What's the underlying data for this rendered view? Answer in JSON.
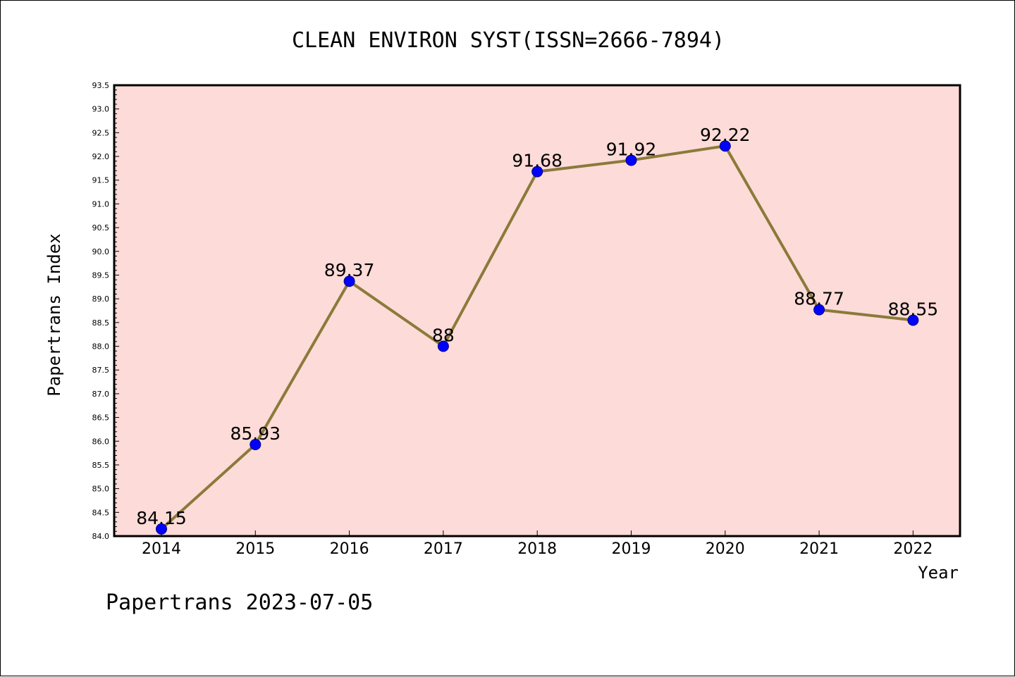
{
  "chart_data": {
    "type": "line",
    "title": "CLEAN ENVIRON SYST(ISSN=2666-7894)",
    "xlabel": "Year",
    "ylabel": "Papertrans Index",
    "categories": [
      "2014",
      "2015",
      "2016",
      "2017",
      "2018",
      "2019",
      "2020",
      "2021",
      "2022"
    ],
    "values": [
      84.15,
      85.93,
      89.37,
      88,
      91.68,
      91.92,
      92.22,
      88.77,
      88.55
    ],
    "data_labels": [
      "84.15",
      "85.93",
      "89.37",
      "88",
      "91.68",
      "91.92",
      "92.22",
      "88.77",
      "88.55"
    ],
    "ylim": [
      84.0,
      93.5
    ],
    "yticks": [
      "84.0",
      "84.5",
      "85.0",
      "85.5",
      "86.0",
      "86.5",
      "87.0",
      "87.5",
      "88.0",
      "88.5",
      "89.0",
      "89.5",
      "90.0",
      "90.5",
      "91.0",
      "91.5",
      "92.0",
      "92.5",
      "93.0",
      "93.5"
    ],
    "grid": false,
    "legend": "none",
    "colors": {
      "plot_background": "#fddbd8",
      "line": "#8b7a3a",
      "marker": "#0000ff"
    }
  },
  "footer": "Papertrans 2023-07-05"
}
